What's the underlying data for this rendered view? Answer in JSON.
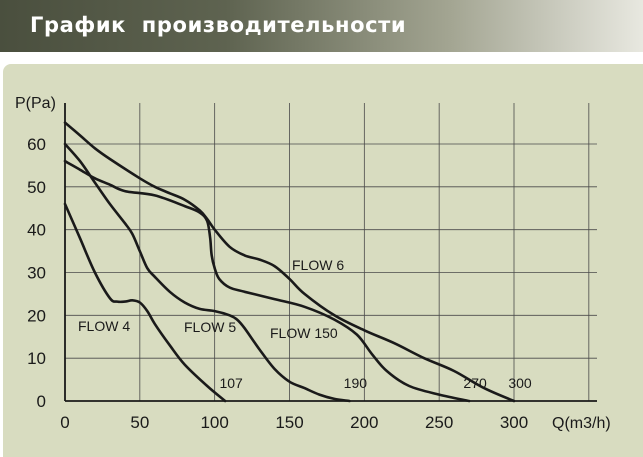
{
  "header": {
    "title": "График  производительности"
  },
  "chart_data": {
    "type": "line",
    "title": "",
    "xlabel": "Q(m3/h)",
    "ylabel": "P(Pa)",
    "xlim": [
      0,
      300
    ],
    "ylim": [
      0,
      60
    ],
    "x_ticks": [
      0,
      50,
      100,
      150,
      200,
      250,
      300
    ],
    "y_ticks": [
      0,
      10,
      20,
      30,
      40,
      50,
      60
    ],
    "grid": true,
    "colors": {
      "background": "#d8dcc0",
      "grid": "#4a4a4a",
      "line": "#1a1a1a",
      "text": "#1a1a1a"
    },
    "series": [
      {
        "name": "FLOW 4",
        "end_label": "107",
        "x": [
          0,
          10,
          20,
          30,
          35,
          40,
          45,
          50,
          55,
          60,
          70,
          80,
          95,
          107
        ],
        "y": [
          46,
          38,
          30,
          24,
          23.2,
          23.2,
          23.5,
          23,
          21,
          18,
          13,
          8.5,
          3.5,
          0
        ]
      },
      {
        "name": "FLOW 5",
        "end_label": "190",
        "x": [
          0,
          10,
          20,
          30,
          40,
          45,
          50,
          55,
          60,
          70,
          80,
          90,
          100,
          110,
          115,
          120,
          130,
          140,
          150,
          160,
          170,
          180,
          190
        ],
        "y": [
          60,
          56,
          51,
          46,
          41.5,
          39,
          35,
          31,
          29,
          25.5,
          23,
          21.5,
          21,
          20,
          19,
          17,
          12,
          7.5,
          4.5,
          3,
          1.5,
          0.5,
          0
        ]
      },
      {
        "name": "FLOW 150",
        "end_label": "270",
        "x": [
          0,
          10,
          20,
          30,
          40,
          60,
          80,
          90,
          95,
          97,
          98,
          100,
          103,
          110,
          120,
          140,
          160,
          180,
          195,
          205,
          215,
          230,
          250,
          270
        ],
        "y": [
          56,
          54,
          52,
          50.5,
          49,
          48,
          45.5,
          44,
          42,
          38,
          34,
          31,
          28.5,
          26.5,
          25.5,
          23.8,
          22,
          19,
          15.5,
          11,
          7,
          3.5,
          1.5,
          0
        ]
      },
      {
        "name": "FLOW 6",
        "end_label": "300",
        "x": [
          0,
          10,
          20,
          30,
          50,
          60,
          70,
          80,
          90,
          95,
          100,
          110,
          120,
          130,
          140,
          150,
          160,
          180,
          200,
          220,
          240,
          260,
          280,
          300
        ],
        "y": [
          65,
          62,
          59,
          56.5,
          52,
          50,
          48.5,
          47,
          44.5,
          42.5,
          40,
          36,
          34,
          33,
          31.5,
          28.5,
          25,
          20,
          16.5,
          13.5,
          10,
          7,
          3,
          0
        ]
      }
    ]
  }
}
